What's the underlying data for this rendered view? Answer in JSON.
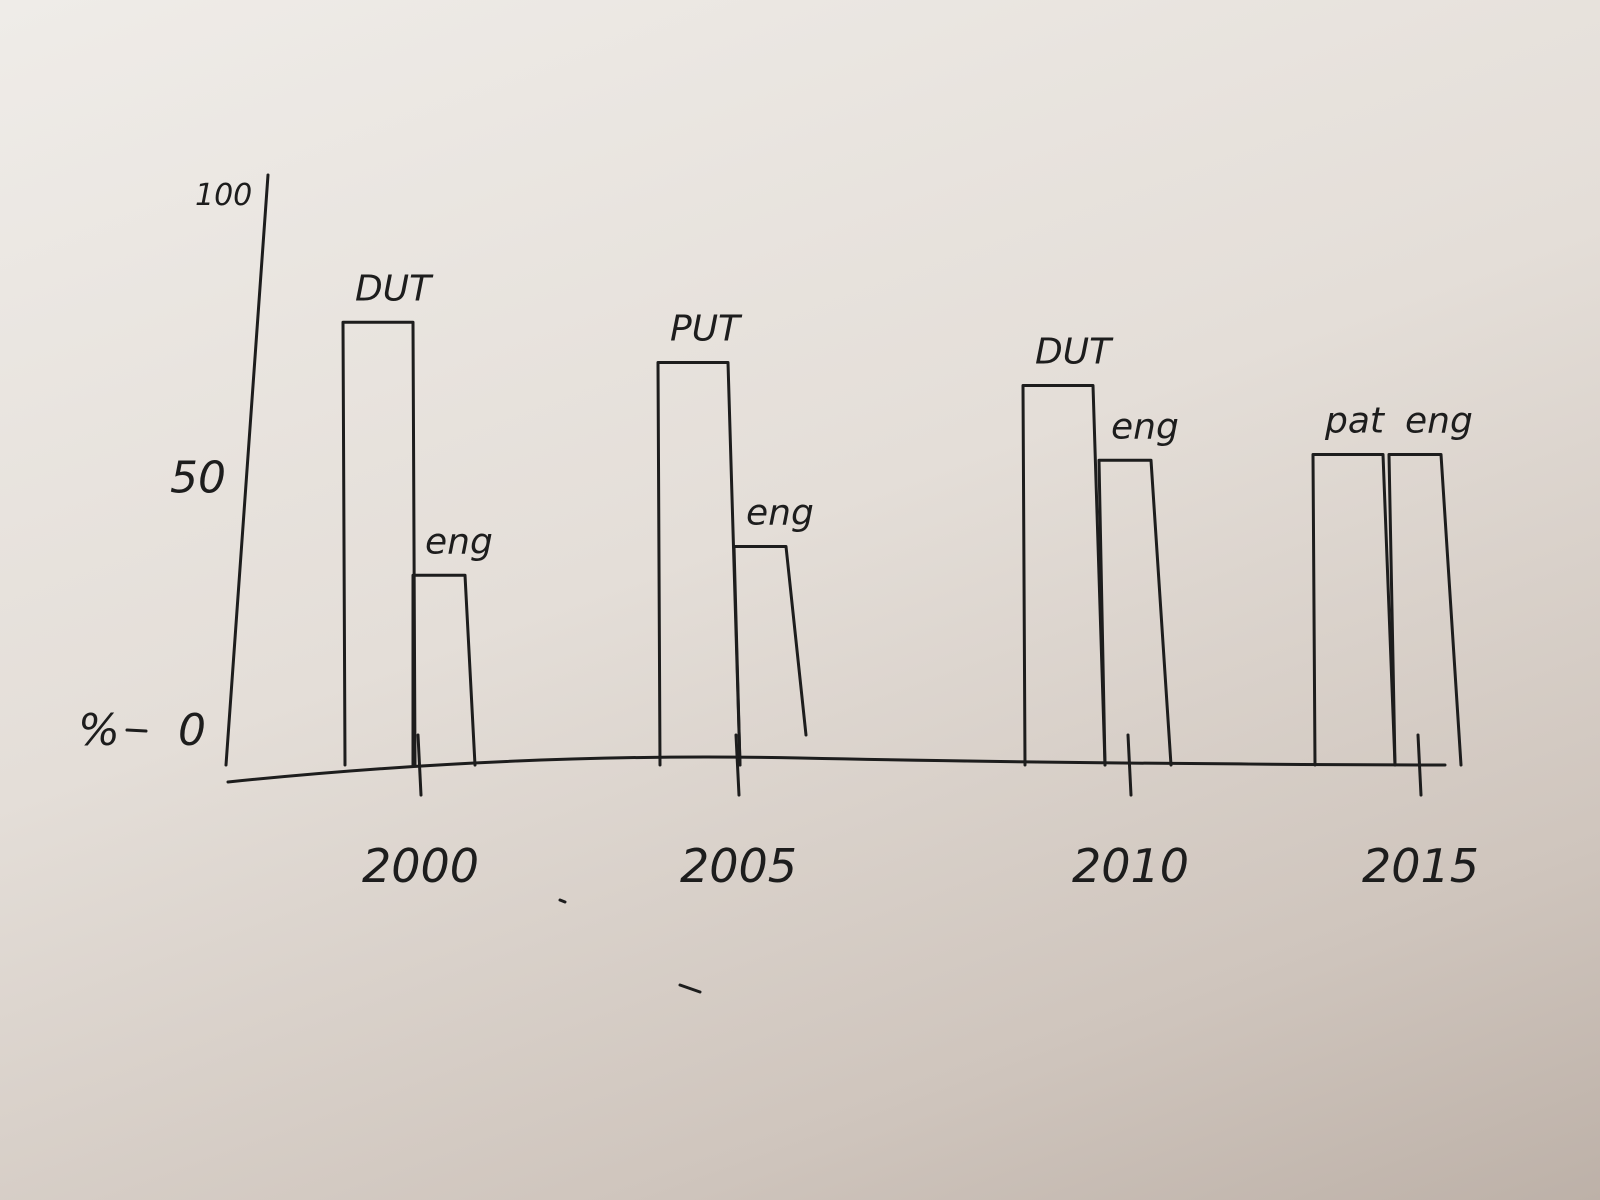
{
  "chart_data": {
    "type": "bar",
    "categories": [
      "2000",
      "2005",
      "2010",
      "2015"
    ],
    "series": [
      {
        "name": "DUT",
        "values": [
          77,
          70,
          66,
          54
        ]
      },
      {
        "name": "eng",
        "values": [
          33,
          38,
          53,
          54
        ]
      }
    ],
    "bar_labels": [
      [
        "DUT",
        "eng"
      ],
      [
        "PUT",
        "eng"
      ],
      [
        "DUT",
        "eng"
      ],
      [
        "pat",
        "eng"
      ]
    ],
    "title": "",
    "xlabel": "",
    "ylabel": "%",
    "yticks": [
      "0",
      "50",
      "100"
    ],
    "ylim": [
      0,
      100
    ],
    "grid": false,
    "legend": "none"
  }
}
